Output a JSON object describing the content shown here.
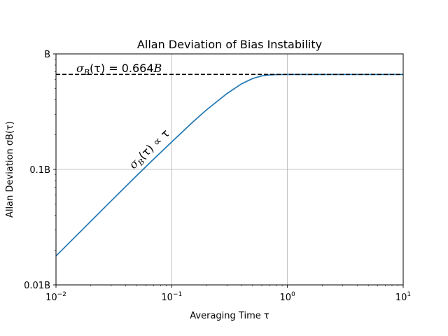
{
  "chart_data": {
    "type": "line",
    "title": "Allan Deviation of Bias Instability",
    "xlabel": "Averaging Time τ",
    "ylabel": "Allan Deviation σB(τ)",
    "xscale": "log",
    "yscale": "log",
    "xlim": [
      0.01,
      10
    ],
    "ylim": [
      0.01,
      1
    ],
    "grid": true,
    "x_ticks": [
      {
        "value": 0.01,
        "base": "10",
        "exp": "−2"
      },
      {
        "value": 0.1,
        "base": "10",
        "exp": "−1"
      },
      {
        "value": 1,
        "base": "10",
        "exp": "0"
      },
      {
        "value": 10,
        "base": "10",
        "exp": "1"
      }
    ],
    "y_ticks": [
      {
        "value": 0.01,
        "label": "0.01B"
      },
      {
        "value": 0.1,
        "label": "0.1B"
      },
      {
        "value": 1,
        "label": "B"
      }
    ],
    "series": [
      {
        "color": "#1f77b4",
        "x": [
          0.01,
          0.02,
          0.03,
          0.05,
          0.07,
          0.1,
          0.15,
          0.2,
          0.3,
          0.4,
          0.5,
          0.6,
          0.7,
          0.8,
          1.0,
          1.5,
          2,
          3,
          5,
          7,
          10
        ],
        "y": [
          0.0178,
          0.0356,
          0.0534,
          0.0887,
          0.123,
          0.173,
          0.254,
          0.328,
          0.453,
          0.55,
          0.612,
          0.645,
          0.658,
          0.662,
          0.664,
          0.664,
          0.664,
          0.664,
          0.664,
          0.664,
          0.664
        ]
      }
    ],
    "reference_line": {
      "y": 0.664,
      "style": "dashed",
      "color": "#000000"
    },
    "annotations": {
      "plateau": {
        "sigma": "σ",
        "sub": "B",
        "rest": "(τ) = 0.664",
        "tail": "B"
      },
      "slope": {
        "sigma": "σ",
        "sub": "B",
        "rest": "(τ) ∝ τ"
      }
    }
  }
}
